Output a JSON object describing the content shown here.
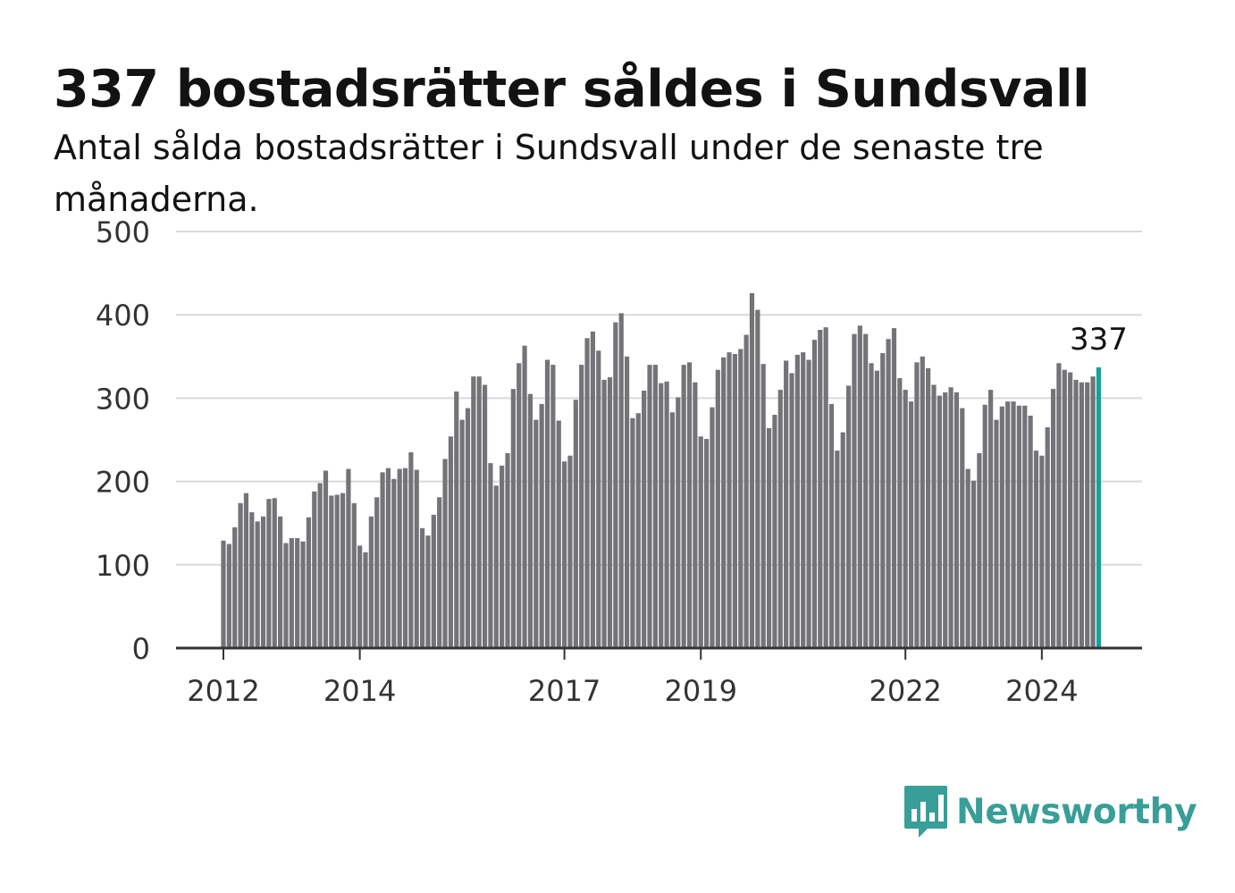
{
  "title": "337 bostadsrätter såldes i Sundsvall",
  "subtitle": "Antal sålda bostadsrätter i Sundsvall under de senaste tre månaderna.",
  "brand": {
    "name": "Newsworthy",
    "color": "#3a9e98",
    "icon": "bar-chart-speech-bubble-icon"
  },
  "colors": {
    "bar": "#747378",
    "highlight": "#16a29a",
    "grid": "#d9d9d9",
    "axis": "#333333",
    "text": "#333333"
  },
  "chart_data": {
    "type": "bar",
    "x_start": "2012-01",
    "frequency": "monthly",
    "ylim": [
      0,
      500
    ],
    "yticks": [
      0,
      100,
      200,
      300,
      400,
      500
    ],
    "xticks": [
      "2012",
      "2014",
      "2017",
      "2019",
      "2022",
      "2024"
    ],
    "grid": true,
    "highlight_last": true,
    "last_value_label": "337",
    "values": [
      129,
      125,
      145,
      174,
      186,
      163,
      152,
      158,
      179,
      180,
      158,
      126,
      132,
      132,
      128,
      157,
      188,
      198,
      213,
      183,
      184,
      186,
      215,
      174,
      123,
      115,
      158,
      181,
      211,
      216,
      203,
      215,
      216,
      235,
      214,
      144,
      135,
      160,
      181,
      227,
      254,
      308,
      274,
      288,
      326,
      326,
      316,
      222,
      195,
      219,
      234,
      311,
      342,
      363,
      305,
      274,
      293,
      346,
      340,
      273,
      224,
      231,
      298,
      340,
      372,
      380,
      357,
      322,
      325,
      391,
      402,
      350,
      276,
      282,
      309,
      340,
      340,
      318,
      320,
      283,
      301,
      340,
      343,
      319,
      254,
      251,
      289,
      334,
      349,
      355,
      353,
      359,
      376,
      426,
      406,
      341,
      264,
      280,
      310,
      345,
      330,
      352,
      355,
      346,
      370,
      382,
      385,
      293,
      237,
      259,
      315,
      377,
      387,
      377,
      342,
      333,
      354,
      371,
      384,
      324,
      310,
      296,
      343,
      350,
      336,
      316,
      303,
      307,
      313,
      307,
      288,
      215,
      201,
      234,
      292,
      310,
      274,
      290,
      296,
      296,
      291,
      291,
      279,
      237,
      231,
      265,
      311,
      342,
      334,
      331,
      322,
      319,
      319,
      326,
      337
    ]
  }
}
